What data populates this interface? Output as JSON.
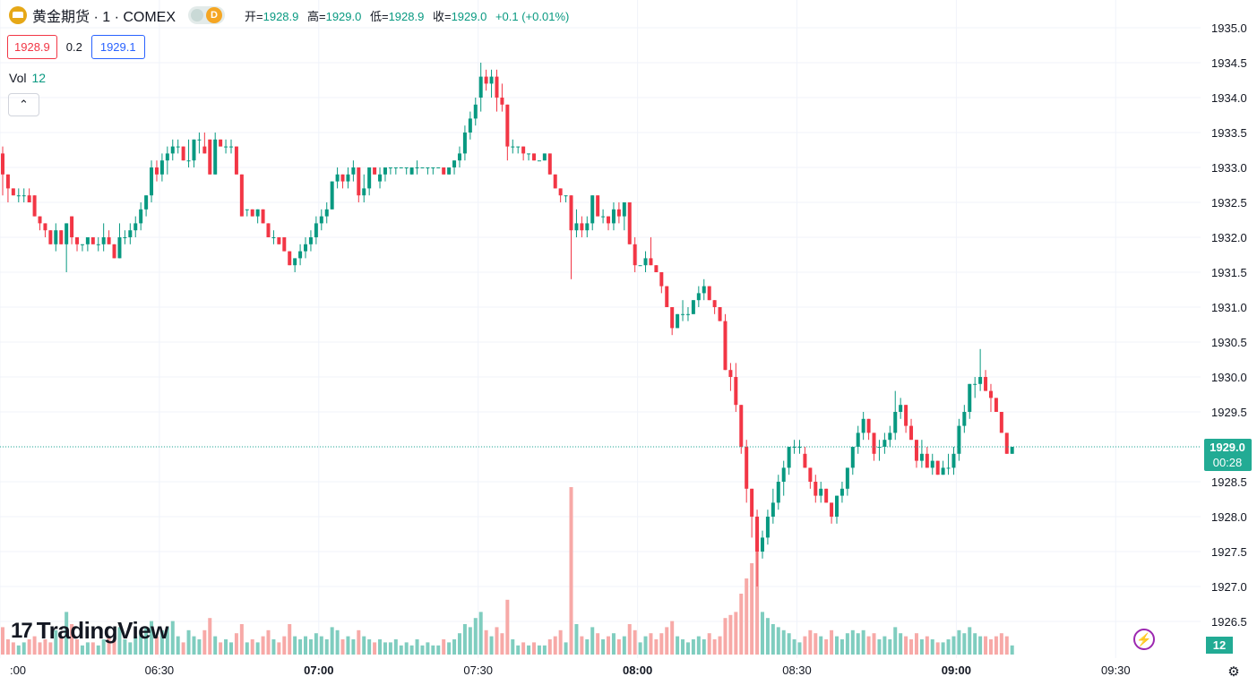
{
  "legend": {
    "symbol_icon": "gold-coin-icon",
    "symbol": "黄金期货 · 1 · COMEX",
    "badge_label": "D",
    "open_label": "开=",
    "open": "1928.9",
    "high_label": "高=",
    "high": "1929.0",
    "low_label": "低=",
    "low": "1928.9",
    "close_label": "收=",
    "close": "1929.0",
    "change": "+0.1 (+0.01%)"
  },
  "bid_ask": {
    "bid": "1928.9",
    "spread": "0.2",
    "ask": "1929.1"
  },
  "volume": {
    "label": "Vol",
    "value": "12"
  },
  "logo": {
    "text": "TradingView",
    "mark": "17"
  },
  "icons": {
    "collapse": "chevron-up-icon",
    "bolt": "lightning-icon",
    "settings": "gear-icon"
  },
  "colors": {
    "up": "#089981",
    "down": "#f23645",
    "up_vol": "#7fcdbf",
    "down_vol": "#f7a9a7",
    "last": "#22ab94"
  },
  "chart_data": {
    "type": "candlestick",
    "y_axis": {
      "min": 1926.5,
      "max": 1935.0,
      "step": 0.5,
      "labels": [
        "1935.0",
        "1934.5",
        "1934.0",
        "1933.5",
        "1933.0",
        "1932.5",
        "1932.0",
        "1931.5",
        "1931.0",
        "1930.5",
        "1930.0",
        "1929.5",
        "1928.5",
        "1928.0",
        "1927.5",
        "1927.0",
        "1926.5"
      ]
    },
    "x_axis": {
      "labels": [
        ":00",
        "06:30",
        "07:00",
        "07:30",
        "08:00",
        "08:30",
        "09:00",
        "09:30"
      ],
      "times_min": [
        360,
        390,
        420,
        450,
        480,
        510,
        540,
        570
      ]
    },
    "last_price": "1929.0",
    "countdown": "00:28",
    "volume_badge": "12",
    "candles": [
      [
        1933.2,
        1933.3,
        1932.6,
        1932.9,
        9
      ],
      [
        1932.9,
        1932.9,
        1932.5,
        1932.7,
        5
      ],
      [
        1932.7,
        1932.7,
        1932.6,
        1932.6,
        4
      ],
      [
        1932.6,
        1932.7,
        1932.5,
        1932.6,
        3
      ],
      [
        1932.6,
        1932.7,
        1932.5,
        1932.6,
        4
      ],
      [
        1932.6,
        1932.7,
        1932.5,
        1932.5,
        5
      ],
      [
        1932.6,
        1932.6,
        1932.3,
        1932.3,
        6
      ],
      [
        1932.3,
        1932.3,
        1932.1,
        1932.2,
        4
      ],
      [
        1932.2,
        1932.2,
        1932.0,
        1932.1,
        5
      ],
      [
        1932.1,
        1932.1,
        1931.9,
        1931.9,
        4
      ],
      [
        1931.9,
        1932.2,
        1931.8,
        1932.1,
        8
      ],
      [
        1932.1,
        1932.1,
        1931.9,
        1931.9,
        6
      ],
      [
        1931.9,
        1932.2,
        1931.5,
        1932.2,
        14
      ],
      [
        1932.3,
        1932.3,
        1931.9,
        1932.0,
        10
      ],
      [
        1932.0,
        1932.0,
        1931.8,
        1931.9,
        5
      ],
      [
        1931.9,
        1931.9,
        1931.8,
        1931.9,
        3
      ],
      [
        1931.9,
        1932.0,
        1931.8,
        1932.0,
        4
      ],
      [
        1932.0,
        1932.0,
        1931.9,
        1931.9,
        4
      ],
      [
        1931.9,
        1932.0,
        1931.8,
        1931.9,
        3
      ],
      [
        1931.9,
        1932.2,
        1931.8,
        1932.0,
        5
      ],
      [
        1932.0,
        1932.1,
        1931.9,
        1931.9,
        6
      ],
      [
        1931.9,
        1931.9,
        1931.7,
        1931.7,
        5
      ],
      [
        1931.7,
        1932.2,
        1931.7,
        1932.0,
        9
      ],
      [
        1932.0,
        1932.1,
        1931.9,
        1932.0,
        5
      ],
      [
        1932.0,
        1932.2,
        1931.9,
        1932.1,
        4
      ],
      [
        1932.1,
        1932.3,
        1932.0,
        1932.2,
        6
      ],
      [
        1932.2,
        1932.5,
        1932.1,
        1932.4,
        8
      ],
      [
        1932.4,
        1932.6,
        1932.3,
        1932.6,
        9
      ],
      [
        1932.6,
        1933.1,
        1932.5,
        1933.0,
        11
      ],
      [
        1933.0,
        1933.1,
        1932.8,
        1932.9,
        6
      ],
      [
        1932.9,
        1933.2,
        1932.8,
        1933.1,
        8
      ],
      [
        1933.1,
        1933.3,
        1932.9,
        1933.2,
        9
      ],
      [
        1933.2,
        1933.4,
        1933.1,
        1933.3,
        11
      ],
      [
        1933.3,
        1933.4,
        1933.2,
        1933.3,
        6
      ],
      [
        1933.3,
        1933.3,
        1933.1,
        1933.1,
        4
      ],
      [
        1933.1,
        1933.4,
        1933.0,
        1933.1,
        8
      ],
      [
        1933.1,
        1933.4,
        1933.0,
        1933.4,
        6
      ],
      [
        1933.4,
        1933.5,
        1933.2,
        1933.4,
        5
      ],
      [
        1933.3,
        1933.5,
        1933.2,
        1933.2,
        8
      ],
      [
        1933.4,
        1933.4,
        1932.9,
        1932.9,
        12
      ],
      [
        1932.9,
        1933.5,
        1932.9,
        1933.4,
        6
      ],
      [
        1933.4,
        1933.4,
        1933.3,
        1933.3,
        4
      ],
      [
        1933.3,
        1933.4,
        1933.2,
        1933.3,
        5
      ],
      [
        1933.3,
        1933.4,
        1933.2,
        1933.3,
        4
      ],
      [
        1933.3,
        1933.3,
        1932.9,
        1932.9,
        7
      ],
      [
        1932.9,
        1932.9,
        1932.3,
        1932.3,
        10
      ],
      [
        1932.4,
        1932.4,
        1932.3,
        1932.4,
        4
      ],
      [
        1932.4,
        1932.4,
        1932.3,
        1932.3,
        5
      ],
      [
        1932.3,
        1932.4,
        1932.2,
        1932.4,
        4
      ],
      [
        1932.4,
        1932.4,
        1932.2,
        1932.2,
        6
      ],
      [
        1932.2,
        1932.2,
        1932.0,
        1932.0,
        8
      ],
      [
        1932.0,
        1932.1,
        1931.9,
        1932.0,
        5
      ],
      [
        1932.0,
        1932.0,
        1931.9,
        1931.9,
        4
      ],
      [
        1932.0,
        1932.0,
        1931.8,
        1931.8,
        6
      ],
      [
        1931.8,
        1931.8,
        1931.6,
        1931.6,
        10
      ],
      [
        1931.6,
        1931.7,
        1931.5,
        1931.7,
        6
      ],
      [
        1931.7,
        1931.9,
        1931.6,
        1931.8,
        5
      ],
      [
        1931.8,
        1932.0,
        1931.7,
        1931.9,
        6
      ],
      [
        1931.9,
        1932.1,
        1931.8,
        1932.0,
        5
      ],
      [
        1932.0,
        1932.3,
        1931.9,
        1932.2,
        7
      ],
      [
        1932.2,
        1932.4,
        1932.1,
        1932.3,
        6
      ],
      [
        1932.3,
        1932.5,
        1932.2,
        1932.4,
        5
      ],
      [
        1932.4,
        1932.8,
        1932.4,
        1932.8,
        9
      ],
      [
        1932.8,
        1933.0,
        1932.7,
        1932.9,
        8
      ],
      [
        1932.9,
        1932.9,
        1932.7,
        1932.8,
        5
      ],
      [
        1932.8,
        1933.0,
        1932.7,
        1932.9,
        6
      ],
      [
        1932.9,
        1933.1,
        1932.8,
        1933.0,
        5
      ],
      [
        1933.0,
        1933.0,
        1932.5,
        1932.6,
        8
      ],
      [
        1932.6,
        1932.9,
        1932.5,
        1932.7,
        6
      ],
      [
        1932.7,
        1933.0,
        1932.6,
        1933.0,
        5
      ],
      [
        1933.0,
        1933.0,
        1932.9,
        1932.9,
        4
      ],
      [
        1932.8,
        1933.0,
        1932.7,
        1932.9,
        5
      ],
      [
        1932.9,
        1933.0,
        1932.8,
        1933.0,
        4
      ],
      [
        1933.0,
        1933.0,
        1932.9,
        1933.0,
        4
      ],
      [
        1933.0,
        1933.0,
        1932.9,
        1933.0,
        5
      ],
      [
        1933.0,
        1933.0,
        1933.0,
        1933.0,
        3
      ],
      [
        1933.0,
        1933.0,
        1932.9,
        1933.0,
        4
      ],
      [
        1932.9,
        1933.0,
        1932.9,
        1933.0,
        3
      ],
      [
        1933.0,
        1933.1,
        1932.9,
        1933.0,
        5
      ],
      [
        1933.0,
        1933.0,
        1933.0,
        1933.0,
        3
      ],
      [
        1933.0,
        1933.0,
        1932.9,
        1933.0,
        4
      ],
      [
        1933.0,
        1933.0,
        1932.9,
        1933.0,
        3
      ],
      [
        1933.0,
        1933.0,
        1933.0,
        1933.0,
        3
      ],
      [
        1933.0,
        1933.0,
        1932.9,
        1932.9,
        5
      ],
      [
        1932.9,
        1933.0,
        1932.9,
        1933.0,
        4
      ],
      [
        1933.0,
        1933.1,
        1932.9,
        1933.1,
        5
      ],
      [
        1933.1,
        1933.3,
        1933.0,
        1933.2,
        7
      ],
      [
        1933.2,
        1933.6,
        1933.1,
        1933.5,
        10
      ],
      [
        1933.5,
        1933.8,
        1933.4,
        1933.7,
        9
      ],
      [
        1933.7,
        1934.0,
        1933.6,
        1933.9,
        12
      ],
      [
        1934.0,
        1934.5,
        1933.8,
        1934.3,
        14
      ],
      [
        1934.3,
        1934.4,
        1934.1,
        1934.2,
        8
      ],
      [
        1934.2,
        1934.4,
        1934.0,
        1934.3,
        6
      ],
      [
        1934.3,
        1934.4,
        1933.8,
        1934.0,
        9
      ],
      [
        1934.0,
        1934.2,
        1933.8,
        1933.9,
        7
      ],
      [
        1933.9,
        1933.9,
        1933.1,
        1933.3,
        18
      ],
      [
        1933.3,
        1933.4,
        1933.2,
        1933.3,
        5
      ],
      [
        1933.3,
        1933.3,
        1933.2,
        1933.3,
        3
      ],
      [
        1933.3,
        1933.3,
        1933.1,
        1933.2,
        4
      ],
      [
        1933.2,
        1933.2,
        1933.1,
        1933.2,
        3
      ],
      [
        1933.2,
        1933.2,
        1933.1,
        1933.1,
        4
      ],
      [
        1933.1,
        1933.1,
        1933.1,
        1933.1,
        3
      ],
      [
        1933.1,
        1933.2,
        1933.1,
        1933.2,
        3
      ],
      [
        1933.2,
        1933.2,
        1932.9,
        1932.9,
        5
      ],
      [
        1932.9,
        1932.9,
        1932.7,
        1932.7,
        6
      ],
      [
        1932.7,
        1932.7,
        1932.5,
        1932.6,
        8
      ],
      [
        1932.6,
        1932.6,
        1932.5,
        1932.6,
        4
      ],
      [
        1932.6,
        1932.6,
        1931.4,
        1932.1,
        55
      ],
      [
        1932.1,
        1932.4,
        1932.0,
        1932.2,
        10
      ],
      [
        1932.2,
        1932.3,
        1932.0,
        1932.1,
        6
      ],
      [
        1932.1,
        1932.3,
        1932.0,
        1932.2,
        5
      ],
      [
        1932.2,
        1932.6,
        1932.1,
        1932.6,
        9
      ],
      [
        1932.6,
        1932.6,
        1932.3,
        1932.3,
        7
      ],
      [
        1932.3,
        1932.4,
        1932.2,
        1932.3,
        5
      ],
      [
        1932.3,
        1932.3,
        1932.1,
        1932.2,
        6
      ],
      [
        1932.2,
        1932.5,
        1932.1,
        1932.4,
        7
      ],
      [
        1932.4,
        1932.5,
        1932.2,
        1932.3,
        5
      ],
      [
        1932.3,
        1932.5,
        1932.1,
        1932.5,
        6
      ],
      [
        1932.5,
        1932.5,
        1931.9,
        1931.9,
        10
      ],
      [
        1931.9,
        1932.0,
        1931.5,
        1931.6,
        8
      ],
      [
        1931.6,
        1931.6,
        1931.6,
        1931.6,
        4
      ],
      [
        1931.6,
        1931.8,
        1931.5,
        1931.7,
        6
      ],
      [
        1931.7,
        1932.0,
        1931.6,
        1931.6,
        7
      ],
      [
        1931.6,
        1931.6,
        1931.5,
        1931.5,
        5
      ],
      [
        1931.5,
        1931.5,
        1931.2,
        1931.3,
        7
      ],
      [
        1931.3,
        1931.3,
        1931.0,
        1931.0,
        9
      ],
      [
        1931.0,
        1931.0,
        1930.6,
        1930.7,
        11
      ],
      [
        1930.7,
        1930.9,
        1930.7,
        1930.9,
        6
      ],
      [
        1930.9,
        1931.1,
        1930.8,
        1930.9,
        5
      ],
      [
        1930.9,
        1931.0,
        1930.8,
        1930.9,
        4
      ],
      [
        1930.9,
        1931.1,
        1930.9,
        1931.1,
        5
      ],
      [
        1931.1,
        1931.3,
        1931.0,
        1931.2,
        6
      ],
      [
        1931.2,
        1931.4,
        1931.1,
        1931.3,
        5
      ],
      [
        1931.3,
        1931.3,
        1931.1,
        1931.1,
        7
      ],
      [
        1931.1,
        1931.1,
        1930.9,
        1931.0,
        5
      ],
      [
        1931.0,
        1931.0,
        1930.8,
        1930.8,
        6
      ],
      [
        1930.8,
        1930.9,
        1930.1,
        1930.1,
        12
      ],
      [
        1930.1,
        1930.2,
        1929.8,
        1930.0,
        13
      ],
      [
        1930.0,
        1930.2,
        1929.5,
        1929.6,
        14
      ],
      [
        1929.6,
        1929.6,
        1928.9,
        1929.0,
        20
      ],
      [
        1929.0,
        1929.1,
        1928.2,
        1928.4,
        25
      ],
      [
        1928.4,
        1928.4,
        1927.7,
        1928.0,
        30
      ],
      [
        1928.0,
        1928.1,
        1927.0,
        1927.5,
        40
      ],
      [
        1927.5,
        1927.8,
        1927.4,
        1927.7,
        14
      ],
      [
        1927.7,
        1928.1,
        1927.6,
        1928.0,
        12
      ],
      [
        1928.0,
        1928.4,
        1927.9,
        1928.2,
        10
      ],
      [
        1928.2,
        1928.6,
        1928.1,
        1928.5,
        9
      ],
      [
        1928.5,
        1928.8,
        1928.3,
        1928.7,
        8
      ],
      [
        1928.7,
        1929.0,
        1928.6,
        1929.0,
        7
      ],
      [
        1929.0,
        1929.1,
        1928.9,
        1929.0,
        5
      ],
      [
        1929.0,
        1929.1,
        1928.9,
        1929.0,
        4
      ],
      [
        1928.9,
        1929.0,
        1928.7,
        1928.7,
        6
      ],
      [
        1928.7,
        1928.7,
        1928.4,
        1928.5,
        8
      ],
      [
        1928.5,
        1928.6,
        1928.2,
        1928.3,
        7
      ],
      [
        1928.3,
        1928.5,
        1928.2,
        1928.4,
        6
      ],
      [
        1928.4,
        1928.4,
        1928.2,
        1928.2,
        5
      ],
      [
        1928.2,
        1928.2,
        1927.9,
        1928.0,
        8
      ],
      [
        1928.0,
        1928.3,
        1927.9,
        1928.3,
        6
      ],
      [
        1928.3,
        1928.5,
        1928.2,
        1928.4,
        5
      ],
      [
        1928.4,
        1928.7,
        1928.3,
        1928.7,
        7
      ],
      [
        1928.7,
        1929.0,
        1928.6,
        1929.0,
        8
      ],
      [
        1929.0,
        1929.3,
        1928.9,
        1929.2,
        7
      ],
      [
        1929.2,
        1929.5,
        1929.1,
        1929.4,
        8
      ],
      [
        1929.4,
        1929.4,
        1929.1,
        1929.2,
        6
      ],
      [
        1929.2,
        1929.2,
        1928.8,
        1928.9,
        7
      ],
      [
        1929.0,
        1929.1,
        1928.8,
        1929.0,
        5
      ],
      [
        1929.0,
        1929.2,
        1928.9,
        1929.1,
        6
      ],
      [
        1929.1,
        1929.3,
        1929.0,
        1929.2,
        5
      ],
      [
        1929.2,
        1929.8,
        1929.1,
        1929.5,
        9
      ],
      [
        1929.5,
        1929.7,
        1929.4,
        1929.6,
        7
      ],
      [
        1929.6,
        1929.6,
        1929.2,
        1929.3,
        6
      ],
      [
        1929.3,
        1929.4,
        1929.1,
        1929.1,
        5
      ],
      [
        1929.1,
        1929.1,
        1928.7,
        1928.8,
        7
      ],
      [
        1928.8,
        1929.1,
        1928.7,
        1928.9,
        5
      ],
      [
        1928.9,
        1929.0,
        1928.7,
        1928.7,
        6
      ],
      [
        1928.7,
        1928.9,
        1928.6,
        1928.8,
        5
      ],
      [
        1928.8,
        1928.8,
        1928.6,
        1928.6,
        4
      ],
      [
        1928.6,
        1928.8,
        1928.6,
        1928.7,
        4
      ],
      [
        1928.7,
        1928.9,
        1928.6,
        1928.7,
        5
      ],
      [
        1928.7,
        1929.0,
        1928.6,
        1928.9,
        6
      ],
      [
        1928.9,
        1929.4,
        1928.8,
        1929.3,
        8
      ],
      [
        1929.3,
        1929.6,
        1929.2,
        1929.5,
        7
      ],
      [
        1929.5,
        1929.9,
        1929.4,
        1929.9,
        9
      ],
      [
        1929.9,
        1930.0,
        1929.7,
        1929.9,
        7
      ],
      [
        1929.9,
        1930.4,
        1929.8,
        1930.0,
        6
      ],
      [
        1930.0,
        1930.1,
        1929.8,
        1929.8,
        6
      ],
      [
        1929.8,
        1929.9,
        1929.5,
        1929.7,
        5
      ],
      [
        1929.7,
        1929.7,
        1929.5,
        1929.5,
        6
      ],
      [
        1929.5,
        1929.5,
        1929.2,
        1929.2,
        7
      ],
      [
        1929.2,
        1929.2,
        1928.9,
        1928.9,
        6
      ],
      [
        1928.9,
        1929.0,
        1928.9,
        1929.0,
        3
      ]
    ]
  }
}
